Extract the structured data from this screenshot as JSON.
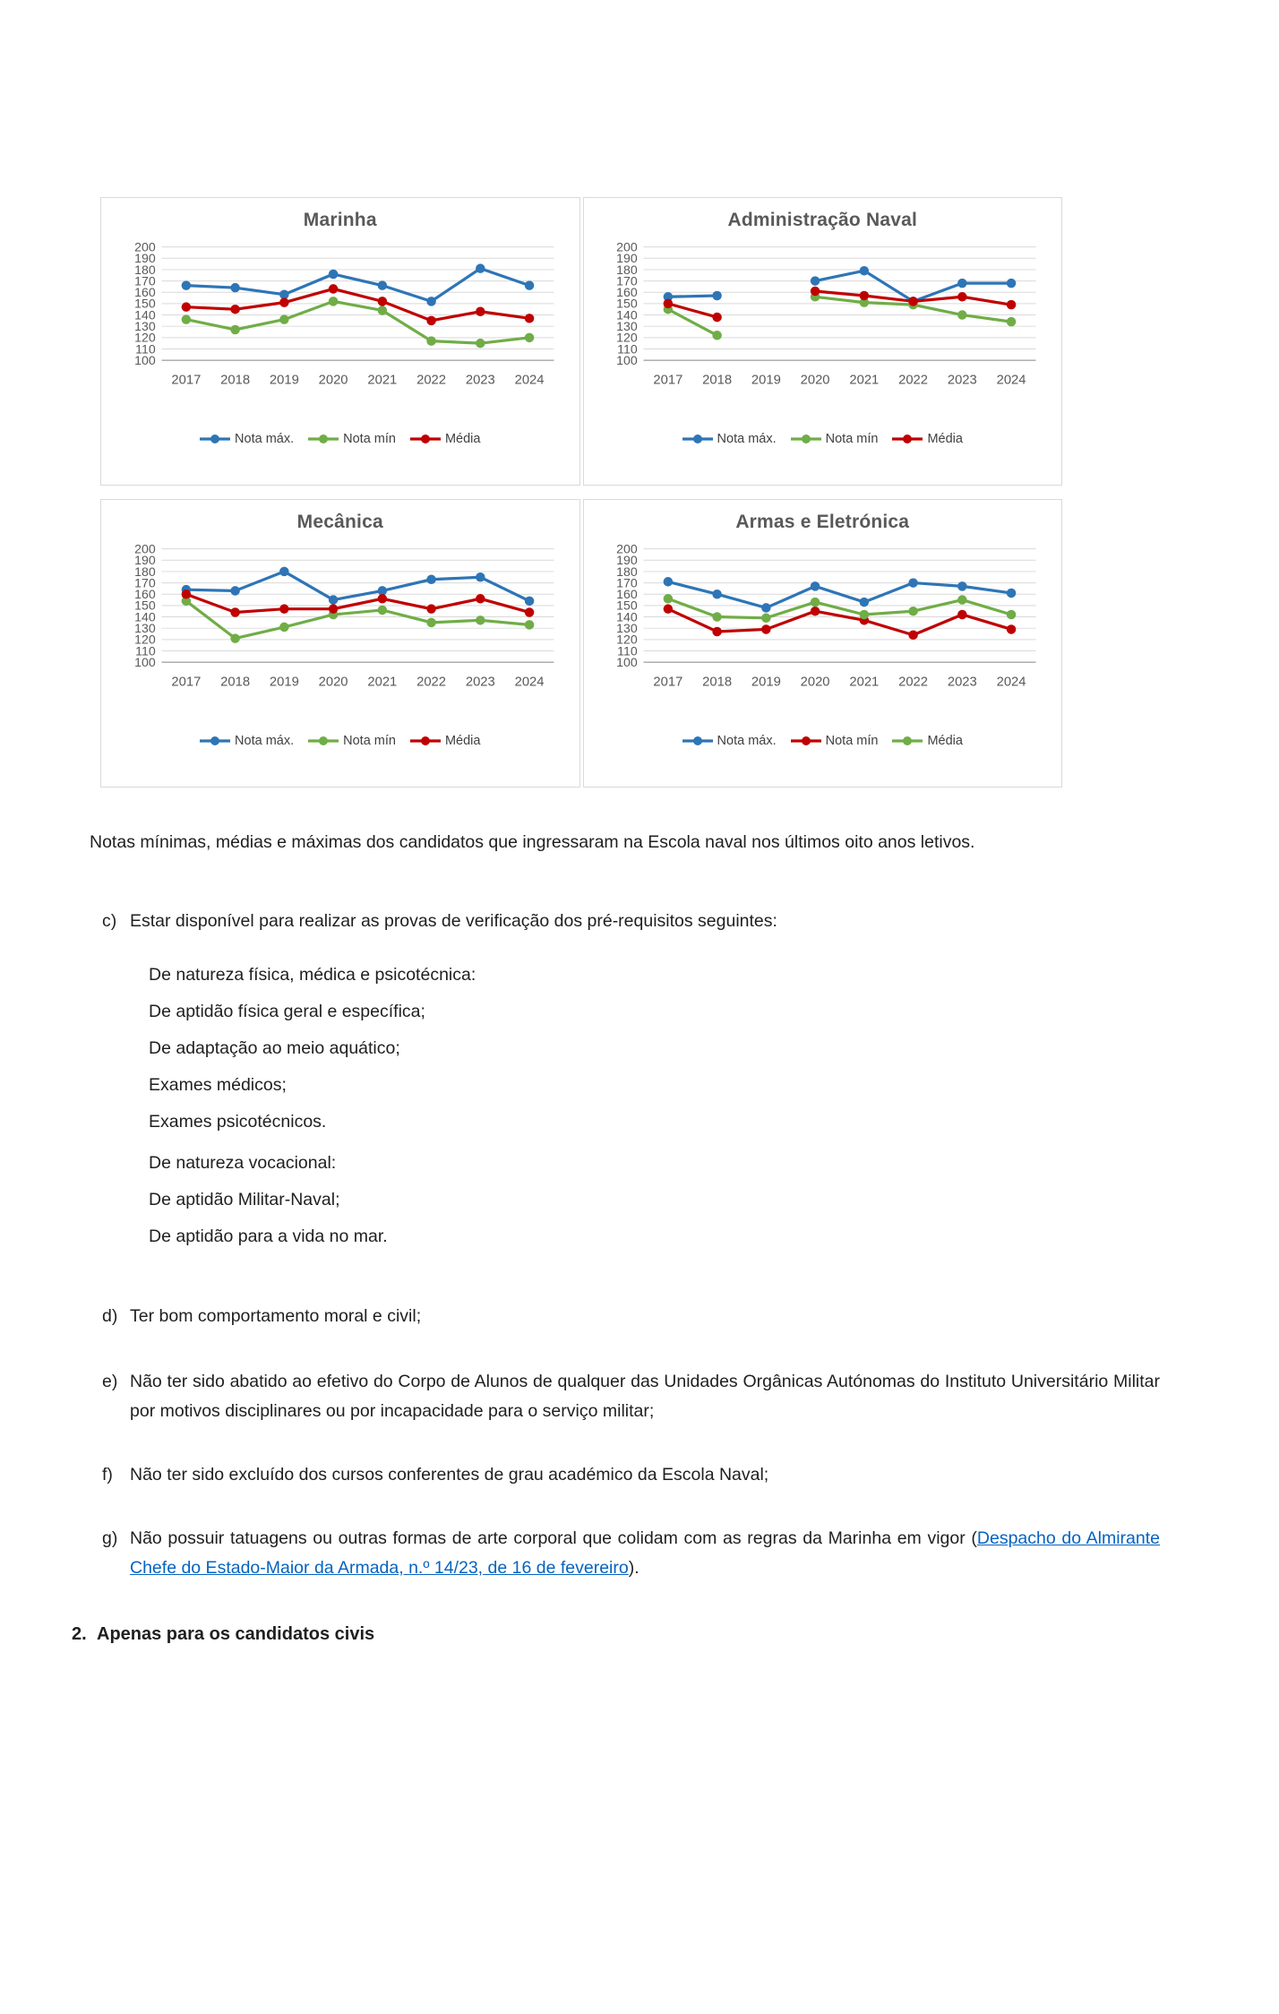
{
  "figure": {
    "years": [
      "2017",
      "2018",
      "2019",
      "2020",
      "2021",
      "2022",
      "2023",
      "2024"
    ],
    "y_axis": {
      "min": 100,
      "max": 200,
      "step": 10
    }
  },
  "chart_data": [
    {
      "type": "line",
      "title": "Marinha",
      "x": [
        "2017",
        "2018",
        "2019",
        "2020",
        "2021",
        "2022",
        "2023",
        "2024"
      ],
      "ylim": [
        100,
        200
      ],
      "ytick_step": 10,
      "grid": true,
      "legend_position": "bottom",
      "series": [
        {
          "name": "Nota máx.",
          "color": "#2e75b6",
          "values": [
            166,
            164,
            158,
            176,
            166,
            152,
            181,
            166
          ]
        },
        {
          "name": "Nota mín",
          "color": "#70ad47",
          "values": [
            136,
            127,
            136,
            152,
            144,
            117,
            115,
            120
          ]
        },
        {
          "name": "Média",
          "color": "#c00000",
          "values": [
            147,
            145,
            151,
            163,
            152,
            135,
            143,
            137
          ]
        }
      ]
    },
    {
      "type": "line",
      "title": "Administração Naval",
      "x": [
        "2017",
        "2018",
        "2019",
        "2020",
        "2021",
        "2022",
        "2023",
        "2024"
      ],
      "ylim": [
        100,
        200
      ],
      "ytick_step": 10,
      "grid": true,
      "legend_position": "bottom",
      "series": [
        {
          "name": "Nota máx.",
          "color": "#2e75b6",
          "values": [
            156,
            157,
            null,
            170,
            179,
            152,
            168,
            168
          ]
        },
        {
          "name": "Nota mín",
          "color": "#70ad47",
          "values": [
            145,
            122,
            null,
            156,
            151,
            149,
            140,
            134
          ]
        },
        {
          "name": "Média",
          "color": "#c00000",
          "values": [
            150,
            138,
            null,
            161,
            157,
            152,
            156,
            149
          ]
        }
      ]
    },
    {
      "type": "line",
      "title": "Mecânica",
      "x": [
        "2017",
        "2018",
        "2019",
        "2020",
        "2021",
        "2022",
        "2023",
        "2024"
      ],
      "ylim": [
        100,
        200
      ],
      "ytick_step": 10,
      "grid": true,
      "legend_position": "bottom",
      "series": [
        {
          "name": "Nota máx.",
          "color": "#2e75b6",
          "values": [
            164,
            163,
            180,
            155,
            163,
            173,
            175,
            154
          ]
        },
        {
          "name": "Nota mín",
          "color": "#70ad47",
          "values": [
            154,
            121,
            131,
            142,
            146,
            135,
            137,
            133
          ]
        },
        {
          "name": "Média",
          "color": "#c00000",
          "values": [
            160,
            144,
            147,
            147,
            156,
            147,
            156,
            144
          ]
        }
      ]
    },
    {
      "type": "line",
      "title": "Armas e Eletrónica",
      "x": [
        "2017",
        "2018",
        "2019",
        "2020",
        "2021",
        "2022",
        "2023",
        "2024"
      ],
      "ylim": [
        100,
        200
      ],
      "ytick_step": 10,
      "grid": true,
      "legend_position": "bottom",
      "series": [
        {
          "name": "Nota máx.",
          "color": "#2e75b6",
          "values": [
            171,
            160,
            148,
            167,
            153,
            170,
            167,
            161
          ]
        },
        {
          "name": "Nota mín",
          "color": "#c00000",
          "values": [
            147,
            127,
            129,
            145,
            137,
            124,
            142,
            129
          ]
        },
        {
          "name": "Média",
          "color": "#70ad47",
          "values": [
            156,
            140,
            139,
            153,
            142,
            145,
            155,
            142
          ]
        }
      ]
    }
  ],
  "caption": "Notas mínimas, médias e máximas dos candidatos que ingressaram na Escola naval nos últimos oito anos letivos.",
  "text": {
    "item_c": {
      "marker": "c)",
      "text": "Estar disponível para realizar as provas de verificação dos pré-requisitos seguintes:"
    },
    "sublist": [
      "De natureza física, médica e psicotécnica:",
      "De aptidão física geral e específica;",
      "De adaptação ao meio aquático;",
      "Exames médicos;",
      "Exames psicotécnicos.",
      "De natureza vocacional:",
      "De aptidão Militar-Naval;",
      "De aptidão para a vida no mar."
    ],
    "item_d": {
      "marker": "d)",
      "text": "Ter bom comportamento moral e civil;"
    },
    "item_e": {
      "marker": "e)",
      "text": "Não ter sido abatido ao efetivo do Corpo de Alunos de qualquer das Unidades Orgânicas Autónomas do Instituto Universitário Militar por motivos disciplinares ou por incapacidade para o serviço militar;"
    },
    "item_f": {
      "marker": "f)",
      "text": "Não ter sido excluído dos cursos conferentes de grau académico da Escola Naval;"
    },
    "item_g": {
      "marker": "g)",
      "text_before_link": "Não possuir tatuagens ou outras formas de arte corporal que colidam com as regras da Marinha em vigor (",
      "link_text": "Despacho do Almirante Chefe do Estado-Maior da Armada, n.º 14/23, de 16 de fevereiro",
      "text_after_link": ")."
    },
    "section_2": {
      "marker": "2.",
      "text": "Apenas para os candidatos civis"
    }
  }
}
